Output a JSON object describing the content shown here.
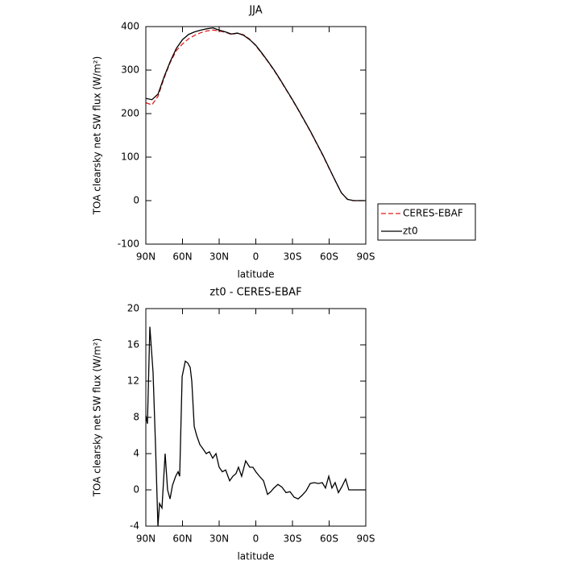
{
  "chart_data": [
    {
      "type": "line",
      "title": "JJA",
      "xlabel": "latitude",
      "ylabel": "TOA clearsky net SW flux (W/m²)",
      "x": [
        90,
        85,
        80,
        75,
        70,
        65,
        60,
        55,
        50,
        45,
        40,
        35,
        30,
        25,
        20,
        15,
        10,
        5,
        0,
        -5,
        -10,
        -15,
        -20,
        -25,
        -30,
        -35,
        -40,
        -45,
        -50,
        -55,
        -60,
        -65,
        -70,
        -75,
        -80,
        -85,
        -90
      ],
      "series": [
        {
          "name": "CERES-EBAF",
          "color": "#e41a1c",
          "linestyle": "dashed",
          "values": [
            225,
            220,
            240,
            282,
            318,
            345,
            360,
            372,
            380,
            386,
            390,
            392,
            390,
            387,
            382,
            385,
            381,
            371,
            356,
            338,
            319,
            299,
            277,
            254,
            231,
            207,
            182,
            157,
            130,
            103,
            74,
            46,
            18,
            3,
            0,
            0,
            0
          ]
        },
        {
          "name": "zt0",
          "color": "#000000",
          "linestyle": "solid",
          "values": [
            235,
            232,
            245,
            285,
            320,
            350,
            370,
            382,
            388,
            392,
            395,
            397,
            392,
            388,
            383,
            385,
            380,
            370,
            357,
            339,
            320,
            300,
            278,
            255,
            232,
            208,
            183,
            158,
            131,
            104,
            75,
            46,
            18,
            3,
            0,
            0,
            0
          ]
        }
      ],
      "xlim": [
        90,
        -90
      ],
      "xticks": [
        {
          "value": 90,
          "label": "90N"
        },
        {
          "value": 60,
          "label": "60N"
        },
        {
          "value": 30,
          "label": "30N"
        },
        0,
        {
          "value": -30,
          "label": "30S"
        },
        {
          "value": -60,
          "label": "60S"
        },
        {
          "value": -90,
          "label": "90S"
        }
      ],
      "ylim": [
        -100,
        400
      ],
      "yticks": [
        -100,
        0,
        100,
        200,
        300,
        400
      ],
      "legend": "right"
    },
    {
      "type": "line",
      "title": "zt0 - CERES-EBAF",
      "xlabel": "latitude",
      "ylabel": "TOA clearsky net SW flux (W/m²)",
      "x": [
        90,
        88.7,
        86.7,
        84.1,
        82.1,
        80.1,
        78.8,
        76.8,
        74.2,
        72.2,
        70.2,
        68.2,
        65.6,
        63.6,
        62.3,
        60.3,
        57.7,
        55.7,
        53.7,
        52.4,
        50.4,
        48.4,
        45.8,
        43.1,
        40.6,
        38.0,
        35.3,
        32.6,
        30.0,
        27.4,
        24.7,
        21.4,
        18.8,
        16.2,
        14.2,
        11.6,
        8.3,
        5.0,
        2.4,
        0,
        -3.0,
        -6.3,
        -9.6,
        -12.2,
        -14.8,
        -18.1,
        -21.4,
        -24.7,
        -28.0,
        -31.3,
        -34.6,
        -37.9,
        -41.2,
        -44.5,
        -47.8,
        -51.1,
        -54.4,
        -57.0,
        -59.7,
        -62.3,
        -64.9,
        -67.6,
        -70.2,
        -73.5,
        -76.1,
        -80.7,
        -90
      ],
      "values": [
        8.2,
        7.3,
        18,
        13,
        5,
        -4,
        -1.5,
        -2,
        4,
        0,
        -1,
        0.5,
        1.5,
        2,
        1.5,
        12.5,
        14.2,
        14,
        13.5,
        12,
        7,
        6,
        5,
        4.5,
        4,
        4.2,
        3.5,
        4,
        2.5,
        2,
        2.2,
        1,
        1.5,
        1.8,
        2.5,
        1.5,
        3.2,
        2.5,
        2.5,
        2,
        1.5,
        1,
        -0.5,
        -0.2,
        0.2,
        0.6,
        0.3,
        -0.3,
        -0.2,
        -0.8,
        -1,
        -0.6,
        -0.1,
        0.7,
        0.8,
        0.7,
        0.8,
        0.2,
        1.5,
        0.2,
        0.8,
        -0.3,
        0.3,
        1.2,
        0,
        0,
        0
      ],
      "color": "#000000",
      "xlim": [
        90,
        -90
      ],
      "xticks": [
        {
          "value": 90,
          "label": "90N"
        },
        {
          "value": 60,
          "label": "60N"
        },
        {
          "value": 30,
          "label": "30N"
        },
        0,
        {
          "value": -30,
          "label": "30S"
        },
        {
          "value": -60,
          "label": "60S"
        },
        {
          "value": -90,
          "label": "90S"
        }
      ],
      "ylim": [
        -4,
        20
      ],
      "yticks": [
        -4,
        0,
        4,
        8,
        12,
        16,
        20
      ]
    }
  ]
}
